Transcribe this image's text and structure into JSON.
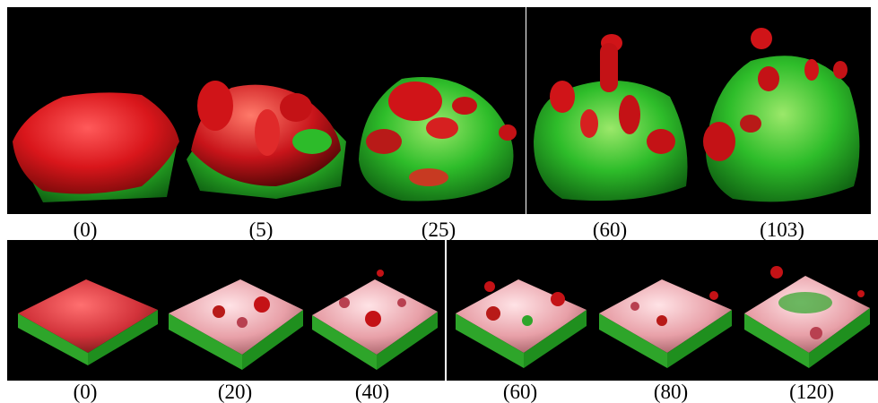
{
  "figure": {
    "top_row": {
      "captions": [
        "(0)",
        "(5)",
        "(25)",
        "(60)",
        "(103)"
      ]
    },
    "bottom_row": {
      "captions": [
        "(0)",
        "(20)",
        "(40)",
        "(60)",
        "(80)",
        "(120)"
      ]
    },
    "colors": {
      "background": "#000000",
      "red_surface": "#e0141a",
      "green_surface": "#1fb526",
      "pink_surface": "#f2b8bd",
      "divider": "#ffffff"
    }
  }
}
